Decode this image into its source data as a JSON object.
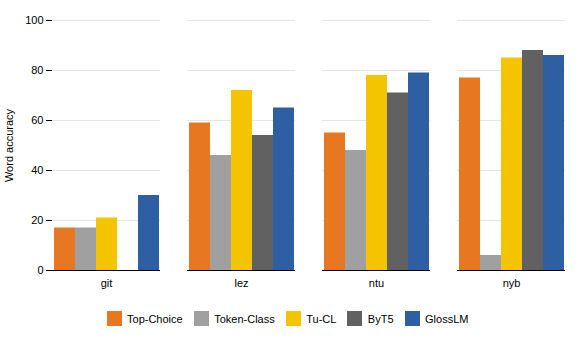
{
  "chart_data": {
    "type": "bar",
    "categories": [
      "git",
      "lez",
      "ntu",
      "nyb"
    ],
    "series": [
      {
        "name": "Top-Choice",
        "color": "#E87722",
        "values": [
          17,
          59,
          55,
          77
        ]
      },
      {
        "name": "Token-Class",
        "color": "#A0A0A0",
        "values": [
          17,
          46,
          48,
          6
        ]
      },
      {
        "name": "Tu-CL",
        "color": "#F5C400",
        "values": [
          21,
          72,
          78,
          85
        ]
      },
      {
        "name": "ByT5",
        "color": "#616161",
        "values": [
          null,
          54,
          71,
          88
        ]
      },
      {
        "name": "GlossLM",
        "color": "#2E5FA3",
        "values": [
          30,
          65,
          79,
          86
        ]
      }
    ],
    "ylabel": "Word accuracy",
    "ylim": [
      0,
      100
    ],
    "yticks": [
      0,
      20,
      40,
      60,
      80,
      100
    ],
    "grid": true,
    "legend": "bottom"
  }
}
